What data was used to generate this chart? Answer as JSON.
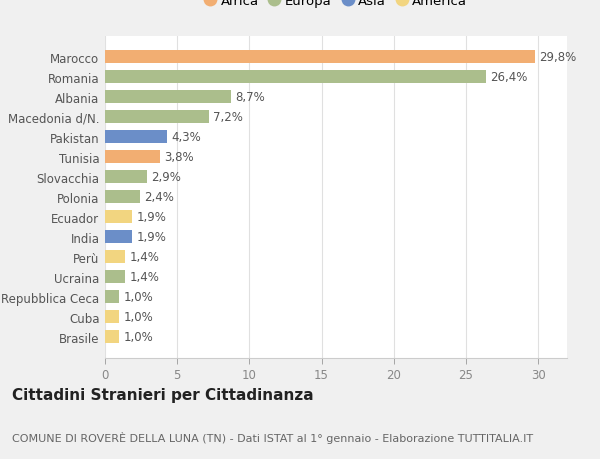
{
  "categories": [
    "Brasile",
    "Cuba",
    "Repubblica Ceca",
    "Ucraina",
    "Perù",
    "India",
    "Ecuador",
    "Polonia",
    "Slovacchia",
    "Tunisia",
    "Pakistan",
    "Macedonia d/N.",
    "Albania",
    "Romania",
    "Marocco"
  ],
  "values": [
    1.0,
    1.0,
    1.0,
    1.4,
    1.4,
    1.9,
    1.9,
    2.4,
    2.9,
    3.8,
    4.3,
    7.2,
    8.7,
    26.4,
    29.8
  ],
  "continents": [
    "America",
    "America",
    "Europa",
    "Europa",
    "America",
    "Asia",
    "America",
    "Europa",
    "Europa",
    "Africa",
    "Asia",
    "Europa",
    "Europa",
    "Europa",
    "Africa"
  ],
  "colors": {
    "Africa": "#F2AE72",
    "Europa": "#ABBE8C",
    "Asia": "#6B8EC8",
    "America": "#F2D580"
  },
  "legend_order": [
    "Africa",
    "Europa",
    "Asia",
    "America"
  ],
  "title": "Cittadini Stranieri per Cittadinanza",
  "subtitle": "COMUNE DI ROVERÈ DELLA LUNA (TN) - Dati ISTAT al 1° gennaio - Elaborazione TUTTITALIA.IT",
  "xlim": [
    0,
    32
  ],
  "xticks": [
    0,
    5,
    10,
    15,
    20,
    25,
    30
  ],
  "bg_color": "#f0f0f0",
  "plot_bg_color": "#ffffff",
  "grid_color": "#e0e0e0",
  "title_fontsize": 11,
  "subtitle_fontsize": 8,
  "label_fontsize": 8.5,
  "tick_fontsize": 8.5,
  "legend_fontsize": 9.5
}
